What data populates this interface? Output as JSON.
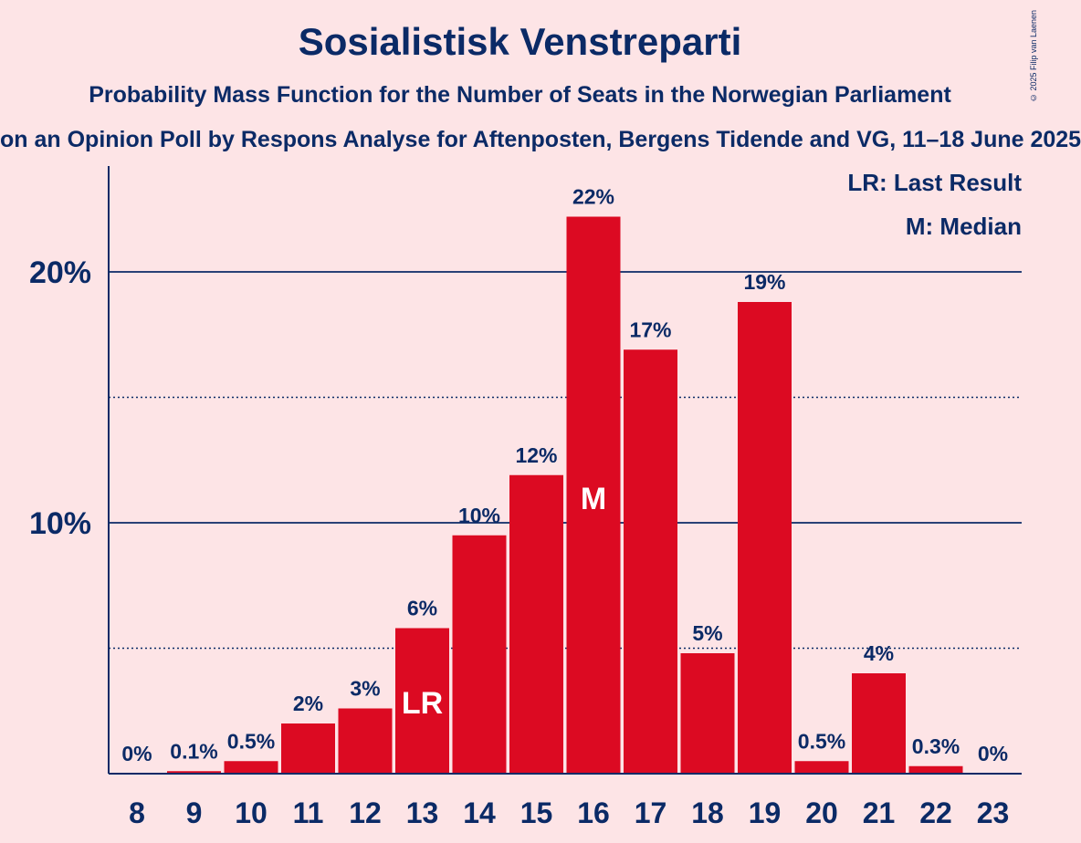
{
  "title": "Sosialistisk Venstreparti",
  "subtitle": "Probability Mass Function for the Number of Seats in the Norwegian Parliament",
  "subsubtitle": "on an Opinion Poll by Respons Analyse for Aftenposten, Bergens Tidende and VG, 11–18 June 2025",
  "copyright": "© 2025 Filip van Laenen",
  "legend": {
    "last_result": "LR: Last Result",
    "median": "M: Median"
  },
  "colors": {
    "bar": "#DC0A22",
    "text": "#0B2A66",
    "background": "#FDE4E6"
  },
  "chart_data": {
    "type": "bar",
    "categories": [
      "8",
      "9",
      "10",
      "11",
      "12",
      "13",
      "14",
      "15",
      "16",
      "17",
      "18",
      "19",
      "20",
      "21",
      "22",
      "23"
    ],
    "values": [
      0,
      0.1,
      0.5,
      2.0,
      2.6,
      5.8,
      9.5,
      11.9,
      22.2,
      16.9,
      4.8,
      18.8,
      0.5,
      4.0,
      0.3,
      0
    ],
    "labels": [
      "0%",
      "0.1%",
      "0.5%",
      "2%",
      "3%",
      "6%",
      "10%",
      "12%",
      "22%",
      "17%",
      "5%",
      "19%",
      "0.5%",
      "4%",
      "0.3%",
      "0%"
    ],
    "ylim": [
      0,
      24
    ],
    "yticks": [
      {
        "value": 10,
        "label": "10%"
      },
      {
        "value": 20,
        "label": "20%"
      }
    ],
    "minor_gridlines": [
      5,
      15
    ],
    "annotations": [
      {
        "category": "13",
        "text": "LR"
      },
      {
        "category": "16",
        "text": "M"
      }
    ],
    "legend_position": "top-right"
  }
}
